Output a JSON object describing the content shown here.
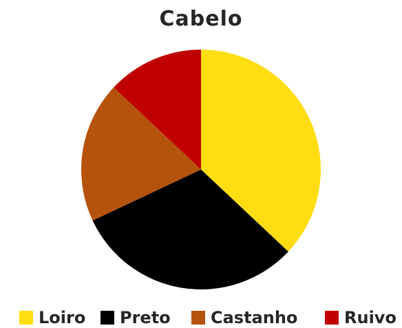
{
  "chart_data": {
    "type": "pie",
    "title": "Cabelo",
    "categories": [
      "Loiro",
      "Preto",
      "Castanho",
      "Ruivo"
    ],
    "values": [
      37,
      31,
      19,
      13
    ],
    "colors": [
      "#FFDD11",
      "#000000",
      "#B5530D",
      "#C00000"
    ],
    "legend_position": "bottom",
    "start_angle_deg": 0,
    "direction": "clockwise"
  }
}
